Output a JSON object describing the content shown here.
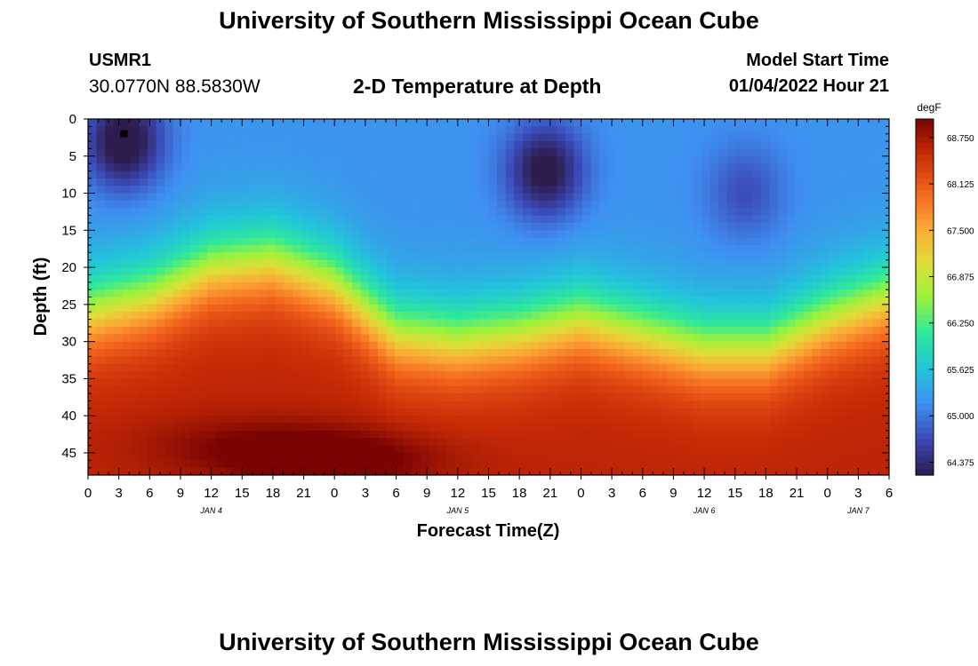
{
  "header": {
    "title": "University of Southern Mississippi Ocean Cube",
    "station_id": "USMR1",
    "coordinates": "30.0770N  88.5830W",
    "subtitle": "2-D Temperature at Depth",
    "model_start_label": "Model Start Time",
    "model_start_value": "01/04/2022 Hour 21",
    "footer_title": "University of Southern Mississippi Ocean Cube"
  },
  "colors": {
    "colormap": [
      "#2d1c4d",
      "#3b49b6",
      "#3f8ff0",
      "#22c5da",
      "#2ee89a",
      "#9bf23c",
      "#e2dc37",
      "#fca535",
      "#f1611c",
      "#c82b06",
      "#7a0403"
    ]
  },
  "chart_data": {
    "type": "heatmap",
    "title": "2-D Temperature at Depth",
    "xlabel": "Forecast Time(Z)",
    "ylabel": "Depth (ft)",
    "x_unit": "hours after 2022-01-04 00Z",
    "xlim": [
      0,
      78
    ],
    "ylim": [
      48,
      0
    ],
    "x_tick_labels": [
      "0",
      "3",
      "6",
      "9",
      "12",
      "15",
      "18",
      "21",
      "0",
      "3",
      "6",
      "9",
      "12",
      "15",
      "18",
      "21",
      "0",
      "3",
      "6",
      "9",
      "12",
      "15",
      "18",
      "21",
      "0",
      "3",
      "6"
    ],
    "y_ticks": [
      0,
      5,
      10,
      15,
      20,
      25,
      30,
      35,
      40,
      45
    ],
    "date_labels": [
      {
        "label": "JAN 4",
        "x": 12
      },
      {
        "label": "JAN 5",
        "x": 36
      },
      {
        "label": "JAN 6",
        "x": 60
      },
      {
        "label": "JAN 7",
        "x": 75
      }
    ],
    "marker": {
      "time_hours": 3.5,
      "depth_ft": 2
    },
    "colorbar": {
      "unit": "degF",
      "min": 64.2,
      "max": 69.0,
      "tick_labels": [
        "68.750",
        "68.125",
        "67.500",
        "66.875",
        "66.250",
        "65.625",
        "65.000",
        "64.375"
      ]
    },
    "thermocline": {
      "time_hours": [
        0,
        6,
        12,
        18,
        24,
        30,
        36,
        42,
        48,
        54,
        60,
        66,
        72,
        78
      ],
      "depth_ft": [
        26,
        24,
        20,
        19,
        22,
        29,
        30,
        29,
        27,
        29,
        31,
        31,
        27,
        24
      ]
    },
    "surface_cold_cores": [
      {
        "time_hours": 3.5,
        "depth_ft": 3,
        "delta_degF": -1.2
      },
      {
        "time_hours": 44.5,
        "depth_ft": 7,
        "delta_degF": -1.1
      },
      {
        "time_hours": 64,
        "depth_ft": 10,
        "delta_degF": -0.5
      }
    ],
    "bottom_warm_cores": [
      {
        "time_hours": 24,
        "depth_ft": 46,
        "delta_degF": 0.6
      },
      {
        "time_hours": 15,
        "depth_ft": 44,
        "delta_degF": 0.3
      }
    ],
    "surface_temp_degF": 65.2,
    "bottom_temp_degF": 68.6
  }
}
